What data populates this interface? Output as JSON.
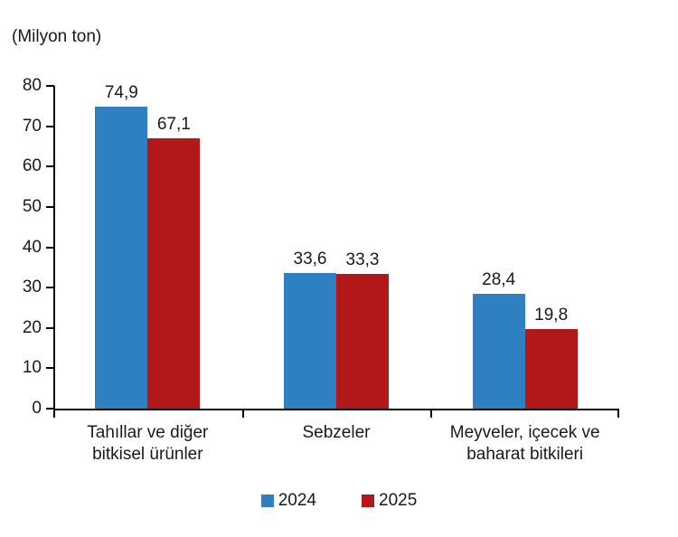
{
  "chart_data": {
    "type": "bar",
    "title": "",
    "unit_label": "(Milyon ton)",
    "xlabel": "",
    "ylabel": "Milyon ton",
    "categories": [
      {
        "label": "Tahıllar ve diğer bitkisel ürünler",
        "lines": [
          "Tahıllar ve diğer",
          "bitkisel ürünler"
        ]
      },
      {
        "label": "Sebzeler",
        "lines": [
          "Sebzeler"
        ]
      },
      {
        "label": "Meyveler, içecek ve baharat bitkileri",
        "lines": [
          "Meyveler, içecek ve",
          "baharat bitkileri"
        ]
      }
    ],
    "series": [
      {
        "name": "2024",
        "color": "#2E80C1",
        "values": [
          74.9,
          33.6,
          28.4
        ],
        "labels": [
          "74,9",
          "33,6",
          "28,4"
        ]
      },
      {
        "name": "2025",
        "color": "#B21817",
        "values": [
          67.1,
          33.3,
          19.8
        ],
        "labels": [
          "67,1",
          "33,3",
          "19,8"
        ]
      }
    ],
    "ylim": [
      0,
      80
    ],
    "yticks": [
      0,
      10,
      20,
      30,
      40,
      50,
      60,
      70,
      80
    ],
    "grid": false,
    "legend_position": "bottom",
    "decimal_separator": ",",
    "axis_color": "#000000"
  }
}
